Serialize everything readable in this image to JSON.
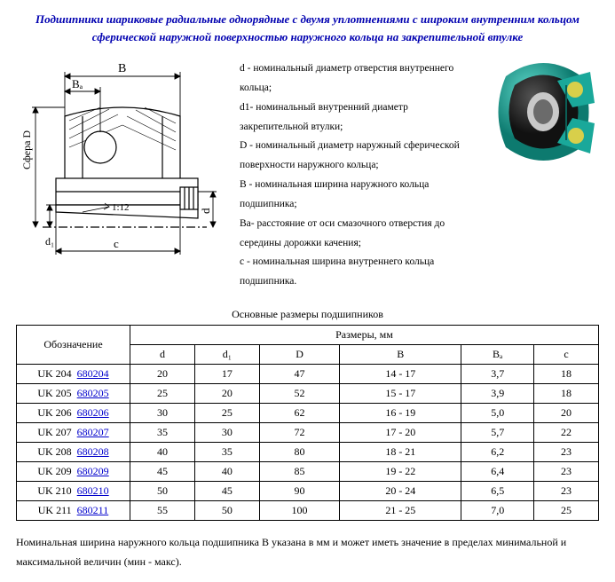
{
  "title_line1": "Подшипники шариковые радиальные однорядные с двумя уплотнениями с широким внутренним кольцом",
  "title_line2": "сферической наружной поверхностью наружного кольца на закрепительной втулке",
  "diagram_labels": {
    "B": "B",
    "Ba": "Bₐ",
    "SphereD": "Сфера D",
    "d1": "d₁",
    "d": "d",
    "c": "c",
    "taper": "1:12"
  },
  "definitions": [
    "d - номинальный диаметр отверстия внутреннего кольца;",
    "d1- номинальный внутренний диаметр закрепительной втулки;",
    "D - номинальный диаметр наружный сферической поверхности наружного кольца;",
    "B - номинальная ширина наружного кольца подшипника;",
    "Ba- расстояние от оси смазочного отверстия до середины дорожки качения;",
    "c - номинальная ширина внутреннего кольца подшипника."
  ],
  "table_caption": "Основные размеры подшипников",
  "headers": {
    "designation": "Обозначение",
    "sizes": "Размеры, мм",
    "d": "d",
    "d1": "d₁",
    "D": "D",
    "B": "B",
    "Ba": "Bₐ",
    "c": "c"
  },
  "rows": [
    {
      "name": "UK 204",
      "link": "680204",
      "d": "20",
      "d1": "17",
      "D": "47",
      "B": "14 - 17",
      "Ba": "3,7",
      "c": "18"
    },
    {
      "name": "UK 205",
      "link": "680205",
      "d": "25",
      "d1": "20",
      "D": "52",
      "B": "15 - 17",
      "Ba": "3,9",
      "c": "18"
    },
    {
      "name": "UK 206",
      "link": "680206",
      "d": "30",
      "d1": "25",
      "D": "62",
      "B": "16 - 19",
      "Ba": "5,0",
      "c": "20"
    },
    {
      "name": "UK 207",
      "link": "680207",
      "d": "35",
      "d1": "30",
      "D": "72",
      "B": "17 - 20",
      "Ba": "5,7",
      "c": "22"
    },
    {
      "name": "UK 208",
      "link": "680208",
      "d": "40",
      "d1": "35",
      "D": "80",
      "B": "18 - 21",
      "Ba": "6,2",
      "c": "23"
    },
    {
      "name": "UK 209",
      "link": "680209",
      "d": "45",
      "d1": "40",
      "D": "85",
      "B": "19 - 22",
      "Ba": "6,4",
      "c": "23"
    },
    {
      "name": "UK 210",
      "link": "680210",
      "d": "50",
      "d1": "45",
      "D": "90",
      "B": "20 - 24",
      "Ba": "6,5",
      "c": "23"
    },
    {
      "name": "UK 211",
      "link": "680211",
      "d": "55",
      "d1": "50",
      "D": "100",
      "B": "21 - 25",
      "Ba": "7,0",
      "c": "25"
    }
  ],
  "footnote": "Номинальная ширина наружного кольца подшипника B указана в мм и может иметь значение в пределах минимальной и максимальной величин (мин - макс).",
  "colors": {
    "title": "#0000b0",
    "link": "#0000cc",
    "border": "#000000",
    "render_teal": "#1aa89a",
    "render_dark": "#2a2a2a",
    "render_yellow": "#d8cf4a"
  }
}
